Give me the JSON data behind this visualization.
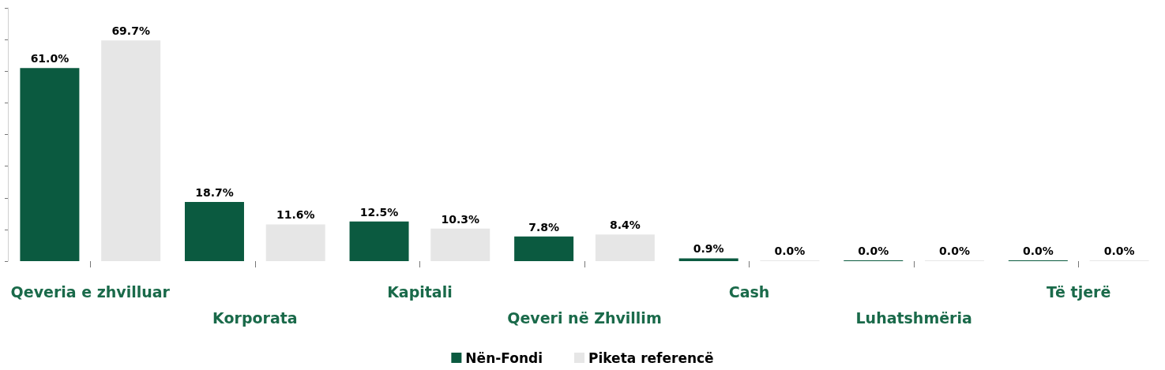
{
  "chart_data": {
    "type": "bar",
    "categories": [
      "Qeveria e zhvilluar",
      "Korporata",
      "Kapitali",
      "Qeveri në Zhvillim",
      "Cash",
      "Luhatshmëria",
      "Të tjerë"
    ],
    "series": [
      {
        "name": "Nën-Fondi",
        "color": "#0b5a40",
        "values": [
          61.0,
          18.7,
          12.5,
          7.8,
          0.9,
          0.0,
          0.0
        ],
        "value_labels": [
          "61.0%",
          "18.7%",
          "12.5%",
          "7.8%",
          "0.9%",
          "0.0%",
          "0.0%"
        ]
      },
      {
        "name": "Piketa referencë",
        "color": "#e6e6e6",
        "values": [
          69.7,
          11.6,
          10.3,
          8.4,
          0.0,
          0.0,
          0.0
        ],
        "value_labels": [
          "69.7%",
          "11.6%",
          "10.3%",
          "8.4%",
          "0.0%",
          "0.0%",
          "0.0%"
        ]
      }
    ],
    "ylim": [
      0,
      80
    ],
    "yticks": [
      {
        "value": 0,
        "label": null
      },
      {
        "value": 10,
        "label": null
      },
      {
        "value": 20,
        "label": null
      },
      {
        "value": 30,
        "label": null
      },
      {
        "value": 40,
        "label": null
      },
      {
        "value": 50,
        "label": null
      },
      {
        "value": 60,
        "label": null
      },
      {
        "value": 70,
        "label": null
      },
      {
        "value": 80,
        "label": null
      }
    ],
    "tick_labels": "x",
    "grid": false,
    "legend": "bottom"
  }
}
